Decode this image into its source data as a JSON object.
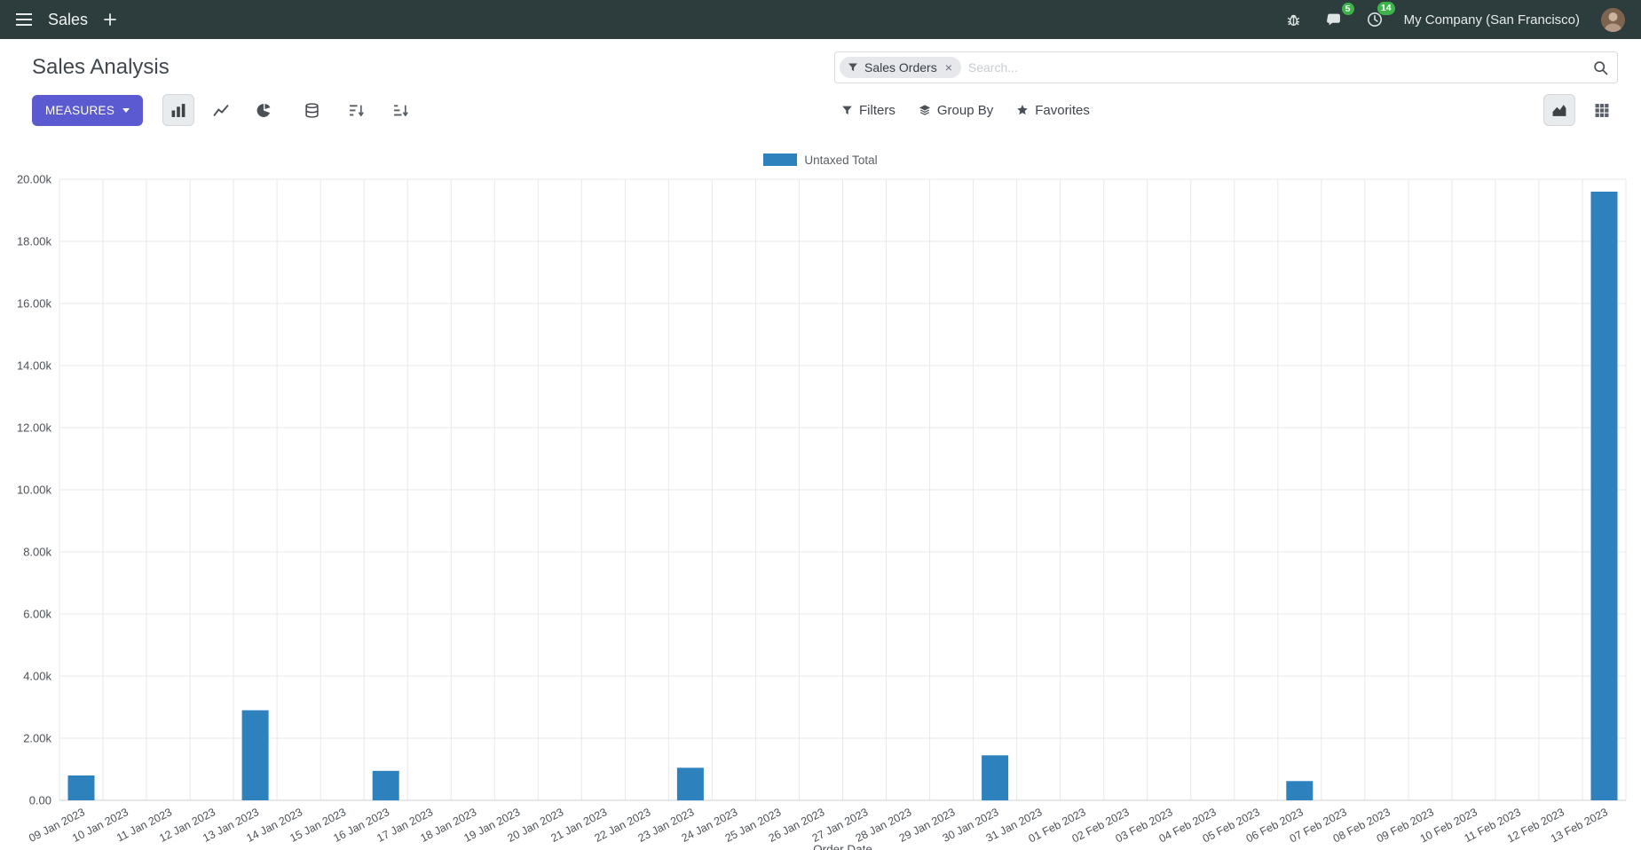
{
  "colors": {
    "navbar_bg": "#2d3c3c",
    "primary_button": "#5b5ad1",
    "badge_green": "#3cb44a",
    "series_blue": "#2d82bd"
  },
  "navbar": {
    "app_name": "Sales",
    "company": "My Company (San Francisco)",
    "message_badge": "5",
    "activity_badge": "14"
  },
  "control_panel": {
    "title": "Sales Analysis",
    "measures_button": "MEASURES",
    "filters_label": "Filters",
    "group_by_label": "Group By",
    "favorites_label": "Favorites",
    "search": {
      "facet_label": "Sales Orders",
      "facet_remove": "×",
      "placeholder": "Search..."
    }
  },
  "chart_data": {
    "type": "bar",
    "title": "",
    "xlabel": "Order Date",
    "ylabel": "",
    "ylim": [
      0,
      20000
    ],
    "grid": true,
    "legend_position": "top",
    "y_ticks": [
      0,
      2000,
      4000,
      6000,
      8000,
      10000,
      12000,
      14000,
      16000,
      18000,
      20000
    ],
    "y_tick_labels": [
      "0.00",
      "2.00k",
      "4.00k",
      "6.00k",
      "8.00k",
      "10.00k",
      "12.00k",
      "14.00k",
      "16.00k",
      "18.00k",
      "20.00k"
    ],
    "categories": [
      "09 Jan 2023",
      "10 Jan 2023",
      "11 Jan 2023",
      "12 Jan 2023",
      "13 Jan 2023",
      "14 Jan 2023",
      "15 Jan 2023",
      "16 Jan 2023",
      "17 Jan 2023",
      "18 Jan 2023",
      "19 Jan 2023",
      "20 Jan 2023",
      "21 Jan 2023",
      "22 Jan 2023",
      "23 Jan 2023",
      "24 Jan 2023",
      "25 Jan 2023",
      "26 Jan 2023",
      "27 Jan 2023",
      "28 Jan 2023",
      "29 Jan 2023",
      "30 Jan 2023",
      "31 Jan 2023",
      "01 Feb 2023",
      "02 Feb 2023",
      "03 Feb 2023",
      "04 Feb 2023",
      "05 Feb 2023",
      "06 Feb 2023",
      "07 Feb 2023",
      "08 Feb 2023",
      "09 Feb 2023",
      "10 Feb 2023",
      "11 Feb 2023",
      "12 Feb 2023",
      "13 Feb 2023"
    ],
    "series": [
      {
        "name": "Untaxed Total",
        "color": "#2d82bd",
        "values": [
          800,
          0,
          0,
          0,
          2900,
          0,
          0,
          950,
          0,
          0,
          0,
          0,
          0,
          0,
          1050,
          0,
          0,
          0,
          0,
          0,
          0,
          1450,
          0,
          0,
          0,
          0,
          0,
          0,
          620,
          0,
          0,
          0,
          0,
          0,
          0,
          19600
        ]
      }
    ]
  }
}
